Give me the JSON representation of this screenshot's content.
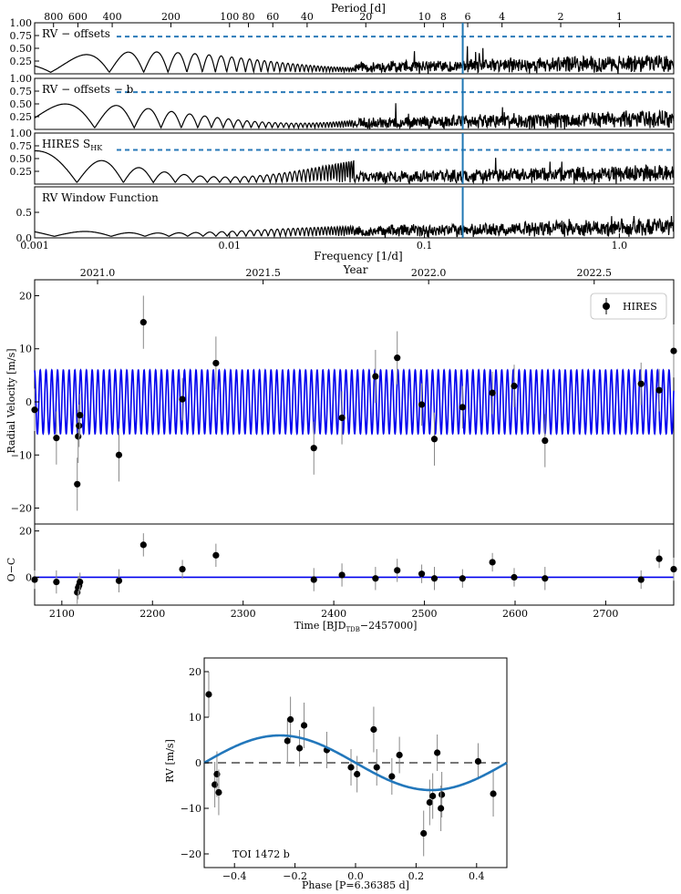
{
  "colors": {
    "dashed": "#2a7ab8",
    "period_line": "#1f77b4",
    "rv_model": "#0000ee",
    "phase_model": "#2277bb",
    "axis": "#000000",
    "point": "#000000",
    "errbar": "#888888",
    "zero_line": "#777777"
  },
  "chart_data": [
    {
      "id": "periodograms",
      "type": "line",
      "title_top": "Period [d]",
      "period_ticks": [
        "800",
        "600",
        "400",
        "200",
        "100",
        "80",
        "60",
        "40",
        "20",
        "10",
        "8",
        "6",
        "4",
        "2",
        "1"
      ],
      "period_tick_values": [
        800,
        600,
        400,
        200,
        100,
        80,
        60,
        40,
        20,
        10,
        8,
        6,
        4,
        2,
        1
      ],
      "xlabel": "Frequency [1/d]",
      "xscale": "log",
      "xlim": [
        0.001,
        1.9
      ],
      "x_tick_labels": [
        "0.001",
        "0.01",
        "0.1",
        "1.0"
      ],
      "x_tick_values": [
        0.001,
        0.01,
        0.1,
        1.0
      ],
      "highlight_period_days": 6.36385,
      "panels": [
        {
          "label": "RV − offsets",
          "ylim": [
            0,
            1.0
          ],
          "y_tick_labels": [
            "0.25",
            "0.50",
            "0.75",
            "1.00"
          ],
          "y_tick_values": [
            0.25,
            0.5,
            0.75,
            1.0
          ],
          "fap_level": 0.73,
          "seed": 11,
          "lowfreq_scale": 0.35
        },
        {
          "label": "RV − offsets − b",
          "ylim": [
            0,
            1.0
          ],
          "y_tick_labels": [
            "0.25",
            "0.50",
            "0.75",
            "1.00"
          ],
          "y_tick_values": [
            0.25,
            0.5,
            0.75,
            1.0
          ],
          "fap_level": 0.73,
          "seed": 23,
          "lowfreq_scale": 0.42
        },
        {
          "label": "HIRES S",
          "label_sub": "HK",
          "ylim": [
            0,
            1.0
          ],
          "y_tick_labels": [
            "0.25",
            "0.50",
            "0.75",
            "1.00"
          ],
          "y_tick_values": [
            0.25,
            0.5,
            0.75,
            1.0
          ],
          "fap_level": 0.67,
          "seed": 37,
          "lowfreq_scale": 0.6
        },
        {
          "label": "RV Window Function",
          "ylim": [
            0,
            1.0
          ],
          "y_tick_labels": [
            "0.0",
            "0.5"
          ],
          "y_tick_values": [
            0,
            0.5
          ],
          "fap_level": null,
          "seed": 53,
          "lowfreq_scale": 0.15
        }
      ]
    },
    {
      "id": "rv_timeseries",
      "type": "scatter",
      "title_top": "Year",
      "year_tick_labels": [
        "2021.0",
        "2021.5",
        "2022.0",
        "2022.5"
      ],
      "year_tick_values": [
        2021.0,
        2021.5,
        2022.0,
        2022.5
      ],
      "ylabel": "Radial Velocity [m/s]",
      "resid_ylabel": "O−C",
      "xlabel_main": "Time [BJD",
      "xlabel_sub": "TDB",
      "xlabel_tail": "−2457000]",
      "xlim": [
        2070,
        2775
      ],
      "x_tick_labels": [
        "2100",
        "2200",
        "2300",
        "2400",
        "2500",
        "2600",
        "2700"
      ],
      "x_tick_values": [
        2100,
        2200,
        2300,
        2400,
        2500,
        2600,
        2700
      ],
      "ylim": [
        -23,
        23
      ],
      "y_tick_labels": [
        "−20",
        "−10",
        "0",
        "10",
        "20"
      ],
      "y_tick_values": [
        -20,
        -10,
        0,
        10,
        20
      ],
      "resid_ylim": [
        -12,
        23
      ],
      "resid_y_tick_labels": [
        "0",
        "20"
      ],
      "resid_y_tick_values": [
        0,
        20
      ],
      "legend": "HIRES",
      "model_amplitude": 6.0,
      "model_period": 6.36385,
      "points": [
        {
          "t": 2070,
          "rv": -1.5,
          "err": 4.0,
          "oc": -1.0
        },
        {
          "t": 2094,
          "rv": -6.8,
          "err": 5.0,
          "oc": -2.0
        },
        {
          "t": 2117,
          "rv": -15.5,
          "err": 5.0,
          "oc": -6.5
        },
        {
          "t": 2118,
          "rv": -6.5,
          "err": 5.0,
          "oc": -4.5
        },
        {
          "t": 2119,
          "rv": -4.5,
          "err": 4.0,
          "oc": -3.5
        },
        {
          "t": 2120,
          "rv": -2.5,
          "err": 4.0,
          "oc": -2.0
        },
        {
          "t": 2163,
          "rv": -10.0,
          "err": 5.0,
          "oc": -1.5
        },
        {
          "t": 2190,
          "rv": 15.0,
          "err": 5.0,
          "oc": 14.0
        },
        {
          "t": 2233,
          "rv": 0.5,
          "err": 4.0,
          "oc": 3.5
        },
        {
          "t": 2270,
          "rv": 7.3,
          "err": 5.0,
          "oc": 9.5
        },
        {
          "t": 2378,
          "rv": -8.7,
          "err": 5.0,
          "oc": -1.0
        },
        {
          "t": 2409,
          "rv": -3.0,
          "err": 5.0,
          "oc": 1.0
        },
        {
          "t": 2446,
          "rv": 4.8,
          "err": 5.0,
          "oc": -0.5
        },
        {
          "t": 2470,
          "rv": 8.3,
          "err": 5.0,
          "oc": 3.0
        },
        {
          "t": 2497,
          "rv": -0.5,
          "err": 4.0,
          "oc": 1.5
        },
        {
          "t": 2511,
          "rv": -7.0,
          "err": 5.0,
          "oc": -0.5
        },
        {
          "t": 2542,
          "rv": -1.0,
          "err": 4.0,
          "oc": -0.5
        },
        {
          "t": 2575,
          "rv": 1.7,
          "err": 4.0,
          "oc": 6.5
        },
        {
          "t": 2599,
          "rv": 3.0,
          "err": 4.0,
          "oc": 0.0
        },
        {
          "t": 2633,
          "rv": -7.3,
          "err": 5.0,
          "oc": -0.5
        },
        {
          "t": 2739,
          "rv": 3.4,
          "err": 4.0,
          "oc": -1.0
        },
        {
          "t": 2759,
          "rv": 2.2,
          "err": 4.0,
          "oc": 8.0
        },
        {
          "t": 2775,
          "rv": 9.6,
          "err": 5.0,
          "oc": 3.5
        }
      ]
    },
    {
      "id": "phase_fold",
      "type": "scatter",
      "annotation": "TOI 1472 b",
      "xlabel": "Phase [P=6.36385 d]",
      "ylabel": "RV [m/s]",
      "xlim": [
        -0.5,
        0.5
      ],
      "x_tick_labels": [
        "−0.4",
        "−0.2",
        "0.0",
        "0.2",
        "0.4"
      ],
      "x_tick_values": [
        -0.4,
        -0.2,
        0.0,
        0.2,
        0.4
      ],
      "ylim": [
        -23,
        23
      ],
      "y_tick_labels": [
        "−20",
        "−10",
        "0",
        "10",
        "20"
      ],
      "y_tick_values": [
        -20,
        -10,
        0,
        10,
        20
      ],
      "model_amplitude": 6.0,
      "points": [
        {
          "phase": -0.485,
          "rv": 15.0,
          "err": 5.0
        },
        {
          "phase": -0.465,
          "rv": -4.8,
          "err": 5.0
        },
        {
          "phase": -0.458,
          "rv": -2.5,
          "err": 5.0
        },
        {
          "phase": -0.452,
          "rv": -6.5,
          "err": 5.0
        },
        {
          "phase": -0.225,
          "rv": 4.8,
          "err": 5.0
        },
        {
          "phase": -0.215,
          "rv": 9.5,
          "err": 5.0
        },
        {
          "phase": -0.185,
          "rv": 3.2,
          "err": 4.0
        },
        {
          "phase": -0.17,
          "rv": 8.2,
          "err": 5.0
        },
        {
          "phase": -0.095,
          "rv": 2.8,
          "err": 4.0
        },
        {
          "phase": -0.015,
          "rv": -1.0,
          "err": 4.0
        },
        {
          "phase": 0.005,
          "rv": -2.5,
          "err": 4.0
        },
        {
          "phase": 0.06,
          "rv": 7.3,
          "err": 5.0
        },
        {
          "phase": 0.07,
          "rv": -1.0,
          "err": 4.0
        },
        {
          "phase": 0.12,
          "rv": -3.0,
          "err": 4.0
        },
        {
          "phase": 0.145,
          "rv": 1.7,
          "err": 4.0
        },
        {
          "phase": 0.225,
          "rv": -15.5,
          "err": 5.0
        },
        {
          "phase": 0.245,
          "rv": -8.7,
          "err": 5.0
        },
        {
          "phase": 0.255,
          "rv": -7.3,
          "err": 5.0
        },
        {
          "phase": 0.27,
          "rv": 2.2,
          "err": 4.0
        },
        {
          "phase": 0.285,
          "rv": -7.0,
          "err": 5.0
        },
        {
          "phase": 0.282,
          "rv": -10.0,
          "err": 5.0
        },
        {
          "phase": 0.405,
          "rv": 0.3,
          "err": 4.0
        },
        {
          "phase": 0.455,
          "rv": -6.8,
          "err": 5.0
        }
      ]
    }
  ]
}
